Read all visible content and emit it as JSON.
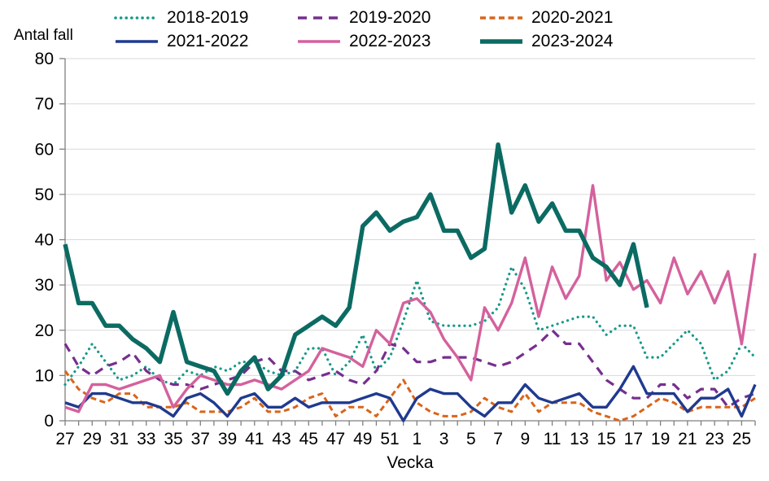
{
  "chart_data": {
    "type": "line",
    "title": "",
    "ylabel": "Antal fall",
    "xlabel": "Vecka",
    "ylim": [
      0,
      80
    ],
    "ytick_step": 10,
    "grid": "horizontal-gridlines",
    "legend_position": "top",
    "grid_color": "#d9d9d9",
    "axis_color": "#7f7f7f",
    "text_color": "#000000",
    "x_tick_label_every": 2,
    "x_categories": [
      "27",
      "28",
      "29",
      "30",
      "31",
      "32",
      "33",
      "34",
      "35",
      "36",
      "37",
      "38",
      "39",
      "40",
      "41",
      "42",
      "43",
      "44",
      "45",
      "46",
      "47",
      "48",
      "49",
      "50",
      "51",
      "52",
      "1",
      "2",
      "3",
      "4",
      "5",
      "6",
      "7",
      "8",
      "9",
      "10",
      "11",
      "12",
      "13",
      "14",
      "15",
      "16",
      "17",
      "18",
      "19",
      "20",
      "21",
      "22",
      "23",
      "24",
      "25",
      "26"
    ],
    "series": [
      {
        "name": "2018-2019",
        "color": "#17998a",
        "style": "dotted",
        "width": 3.2,
        "values": [
          8,
          12,
          17,
          13,
          9,
          10,
          12,
          9,
          8,
          11,
          10,
          12,
          11,
          13,
          13,
          11,
          10,
          11,
          16,
          16,
          10,
          13,
          19,
          11,
          14,
          22,
          31,
          22,
          21,
          21,
          21,
          22,
          25,
          34,
          29,
          20,
          21,
          22,
          23,
          23,
          19,
          21,
          21,
          14,
          14,
          17,
          20,
          17,
          9,
          11,
          17,
          14
        ]
      },
      {
        "name": "2019-2020",
        "color": "#762f8e",
        "style": "dashed",
        "width": 3.2,
        "values": [
          17,
          12,
          10,
          12,
          13,
          15,
          11,
          9,
          8,
          8,
          7,
          8,
          9,
          10,
          13,
          14,
          11,
          11,
          9,
          10,
          11,
          9,
          8,
          11,
          17,
          16,
          13,
          13,
          14,
          14,
          14,
          13,
          12,
          13,
          15,
          17,
          20,
          17,
          17,
          13,
          9,
          7,
          5,
          5,
          8,
          8,
          5,
          7,
          7,
          3,
          5,
          6
        ]
      },
      {
        "name": "2020-2021",
        "color": "#d96519",
        "style": "dashed_short",
        "width": 3.0,
        "values": [
          11,
          7,
          5,
          4,
          6,
          6,
          3,
          3,
          3,
          4,
          2,
          2,
          2,
          3,
          5,
          2,
          2,
          3,
          5,
          6,
          1,
          3,
          3,
          1,
          5,
          9,
          4,
          2,
          1,
          1,
          2,
          5,
          3,
          2,
          6,
          2,
          4,
          4,
          4,
          2,
          1,
          0,
          1,
          3,
          5,
          4,
          2,
          3,
          3,
          3,
          3,
          5
        ]
      },
      {
        "name": "2021-2022",
        "color": "#1f3a8f",
        "style": "solid",
        "width": 3.4,
        "values": [
          4,
          3,
          6,
          6,
          5,
          4,
          4,
          3,
          1,
          5,
          6,
          4,
          1,
          5,
          6,
          3,
          3,
          5,
          3,
          4,
          4,
          4,
          5,
          6,
          5,
          0,
          5,
          7,
          6,
          6,
          3,
          1,
          4,
          4,
          8,
          5,
          4,
          5,
          6,
          3,
          3,
          7,
          12,
          6,
          6,
          6,
          2,
          5,
          5,
          7,
          1,
          8
        ]
      },
      {
        "name": "2022-2023",
        "color": "#d4619d",
        "style": "solid",
        "width": 3.4,
        "values": [
          3,
          2,
          8,
          8,
          7,
          8,
          9,
          10,
          3,
          7,
          10,
          9,
          8,
          8,
          9,
          8,
          7,
          9,
          11,
          16,
          15,
          14,
          12,
          20,
          17,
          26,
          27,
          24,
          18,
          14,
          9,
          25,
          20,
          26,
          36,
          23,
          34,
          27,
          32,
          52,
          31,
          35,
          29,
          31,
          26,
          36,
          28,
          33,
          26,
          33,
          17,
          37
        ]
      },
      {
        "name": "2023-2024",
        "color": "#0b6b63",
        "style": "solid",
        "width": 5.4,
        "values": [
          39,
          26,
          26,
          21,
          21,
          18,
          16,
          13,
          24,
          13,
          12,
          11,
          6,
          11,
          14,
          7,
          10,
          19,
          21,
          23,
          21,
          25,
          43,
          46,
          42,
          44,
          45,
          50,
          42,
          42,
          36,
          38,
          61,
          46,
          52,
          44,
          48,
          42,
          42,
          36,
          34,
          30,
          39,
          25,
          null,
          null,
          null,
          null,
          null,
          null,
          null,
          null
        ]
      }
    ]
  }
}
